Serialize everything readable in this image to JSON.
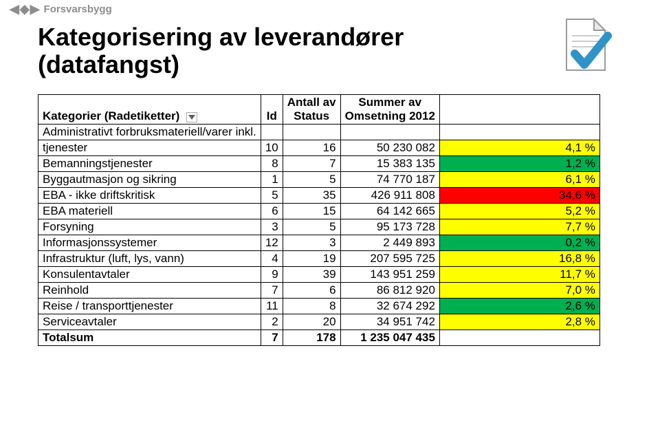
{
  "brand": "Forsvarsbygg",
  "title_line1": "Kategorisering av leverandører",
  "title_line2": "(datafangst)",
  "columns": {
    "cat": "Kategorier (Radetiketter)",
    "id": "Id",
    "status_top": "Antall av",
    "status_bot": "Status",
    "sum_top": "Summer av",
    "sum_bot": "Omsetning 2012"
  },
  "colors": {
    "yellow": "#ffff00",
    "green": "#00b050",
    "red": "#ff0000",
    "white": "#ffffff",
    "black": "#000000"
  },
  "rows": [
    {
      "cat": "Administrativt forbruksmateriell/varer inkl.",
      "id": "",
      "status": "",
      "sum": "",
      "pct": "",
      "color": "white"
    },
    {
      "cat": "tjenester",
      "id": "10",
      "status": "16",
      "sum": "50 230 082",
      "pct": "4,1 %",
      "color": "yellow"
    },
    {
      "cat": "Bemanningstjenester",
      "id": "8",
      "status": "7",
      "sum": "15 383 135",
      "pct": "1,2 %",
      "color": "green"
    },
    {
      "cat": "Byggautmasjon og sikring",
      "id": "1",
      "status": "5",
      "sum": "74 770 187",
      "pct": "6,1 %",
      "color": "yellow"
    },
    {
      "cat": "EBA - ikke driftskritisk",
      "id": "5",
      "status": "35",
      "sum": "426 911 808",
      "pct": "34,6 %",
      "color": "red"
    },
    {
      "cat": "EBA materiell",
      "id": "6",
      "status": "15",
      "sum": "64 142 665",
      "pct": "5,2 %",
      "color": "yellow"
    },
    {
      "cat": "Forsyning",
      "id": "3",
      "status": "5",
      "sum": "95 173 728",
      "pct": "7,7 %",
      "color": "yellow"
    },
    {
      "cat": "Informasjonssystemer",
      "id": "12",
      "status": "3",
      "sum": "2 449 893",
      "pct": "0,2 %",
      "color": "green"
    },
    {
      "cat": "Infrastruktur (luft, lys, vann)",
      "id": "4",
      "status": "19",
      "sum": "207 595 725",
      "pct": "16,8 %",
      "color": "yellow"
    },
    {
      "cat": "Konsulentavtaler",
      "id": "9",
      "status": "39",
      "sum": "143 951 259",
      "pct": "11,7 %",
      "color": "yellow"
    },
    {
      "cat": "Reinhold",
      "id": "7",
      "status": "6",
      "sum": "86 812 920",
      "pct": "7,0 %",
      "color": "yellow"
    },
    {
      "cat": "Reise / transporttjenester",
      "id": "11",
      "status": "8",
      "sum": "32 674 292",
      "pct": "2,6 %",
      "color": "green"
    },
    {
      "cat": "Serviceavtaler",
      "id": "2",
      "status": "20",
      "sum": "34 951 742",
      "pct": "2,8 %",
      "color": "yellow"
    }
  ],
  "total": {
    "cat": "Totalsum",
    "id": "7",
    "status": "178",
    "sum": "1 235 047 435",
    "pct": ""
  }
}
